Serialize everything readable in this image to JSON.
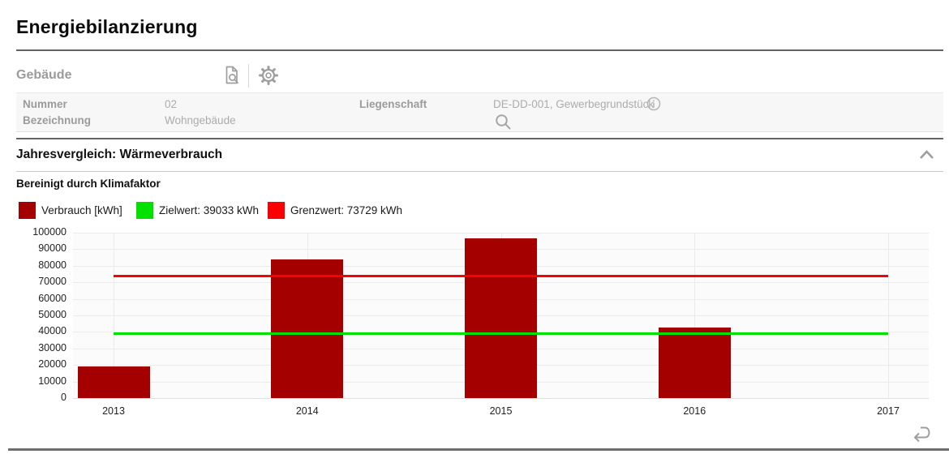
{
  "page": {
    "title": "Energiebilanzierung"
  },
  "toolbar": {
    "section_label": "Gebäude",
    "icons": [
      "document-search",
      "settings-gear"
    ]
  },
  "building_info": {
    "fields": [
      {
        "label": "Nummer",
        "value": "02"
      },
      {
        "label": "Bezeichnung",
        "value": "Wohngebäude"
      },
      {
        "label": "Liegenschaft",
        "value": "DE-DD-001, Gewerbegrundstück"
      }
    ],
    "liegenschaft_icons": [
      "info-icon",
      "search-icon"
    ]
  },
  "section": {
    "title": "Jahresvergleich: Wärmeverbrauch"
  },
  "chart_data": {
    "type": "bar",
    "title": "Bereinigt durch Klimafaktor",
    "categories": [
      "2013",
      "2014",
      "2015",
      "2016",
      "2017"
    ],
    "series": [
      {
        "name": "Verbrauch [kWh]",
        "type": "bar",
        "color": "#a50000",
        "values": [
          19300,
          84000,
          96800,
          42500,
          null
        ]
      },
      {
        "name": "Zielwert: 39033 kWh",
        "type": "line",
        "color": "#00e100",
        "value": 39033
      },
      {
        "name": "Grenzwert: 73729 kWh",
        "type": "line",
        "color": "#fb0000",
        "value": 73729
      }
    ],
    "xlabel": "",
    "ylabel": "",
    "ylim": [
      0,
      100000
    ],
    "ytick_step": 10000,
    "grid": true,
    "legend_position": "top"
  },
  "ui_colors": {
    "bar_red": "#a50000",
    "target_green": "#00e100",
    "limit_red": "#fb0000",
    "divider_dark": "#636363",
    "icon_gray": "#9e9e9e"
  }
}
